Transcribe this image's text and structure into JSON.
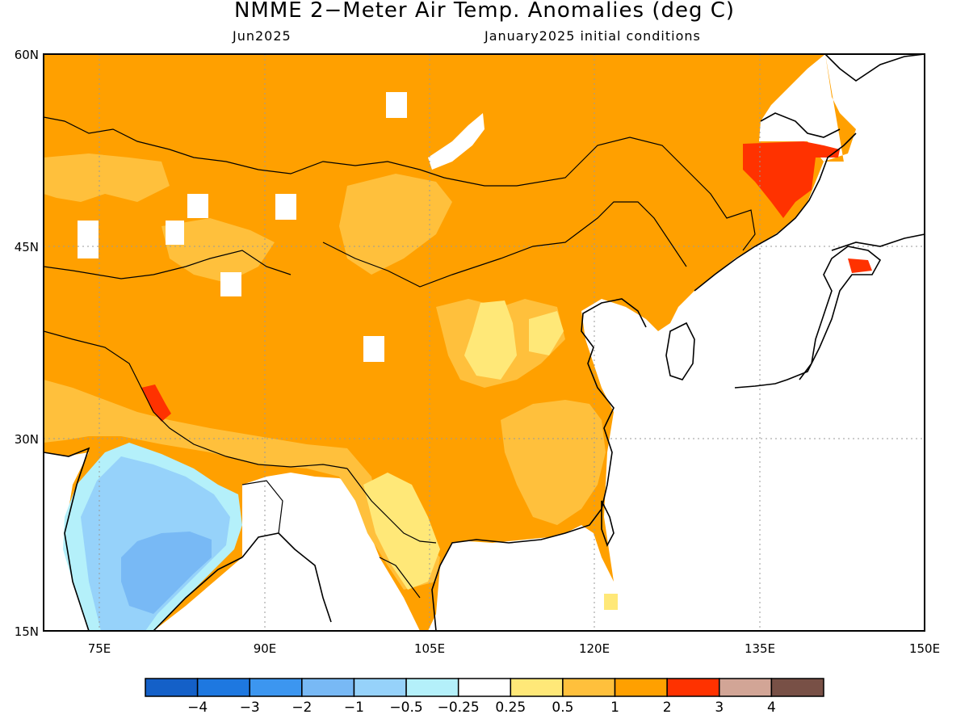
{
  "title": "NMME 2−Meter Air Temp. Anomalies (deg C)",
  "subtitle_left": "Jun2025",
  "subtitle_right": "January2025 initial conditions",
  "lat_labels": [
    "60N",
    "45N",
    "30N",
    "15N"
  ],
  "lon_labels": [
    "75E",
    "90E",
    "105E",
    "120E",
    "135E",
    "150E"
  ],
  "colorbar": {
    "colors": [
      "#1460c8",
      "#1e78e0",
      "#3c96f0",
      "#78b9f5",
      "#96d2fa",
      "#b4f0fa",
      "#ffffff",
      "#ffe878",
      "#ffc03c",
      "#ffa000",
      "#ff3200",
      "#d2a596",
      "#785046"
    ],
    "labels": [
      "−4",
      "−3",
      "−2",
      "−1",
      "−0.5",
      "−0.25",
      "0.25",
      "0.5",
      "1",
      "2",
      "3",
      "4"
    ]
  }
}
